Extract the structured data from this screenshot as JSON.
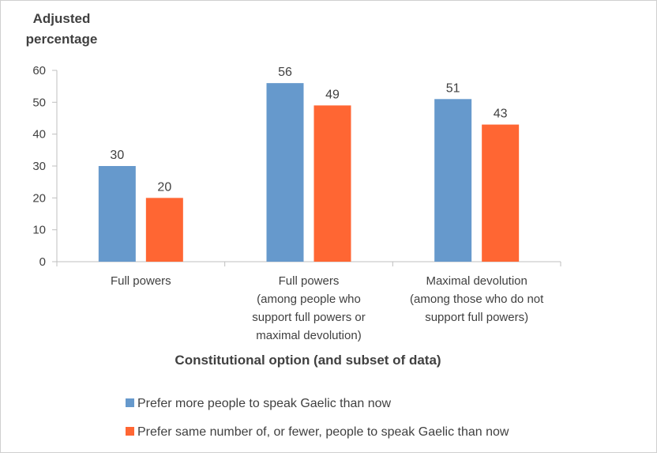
{
  "chart_data": {
    "type": "bar",
    "ylabel_lines": [
      "Adjusted",
      "percentage"
    ],
    "xlabel": "Constitutional option (and subset of data)",
    "ylim": [
      0,
      60
    ],
    "yticks": [
      0,
      10,
      20,
      30,
      40,
      50,
      60
    ],
    "grid": false,
    "legend_position": "bottom",
    "categories": [
      [
        "Full powers"
      ],
      [
        "Full powers",
        "(among people who",
        "support full powers or",
        "maximal devolution)"
      ],
      [
        "Maximal devolution",
        "(among those who do not",
        "support full powers)"
      ]
    ],
    "series": [
      {
        "name": "Prefer more people to speak Gaelic than now",
        "color": "#6699cc",
        "values": [
          30,
          56,
          51
        ]
      },
      {
        "name": "Prefer same number of, or fewer, people to speak Gaelic than now",
        "color": "#ff6633",
        "values": [
          20,
          49,
          43
        ]
      }
    ]
  }
}
